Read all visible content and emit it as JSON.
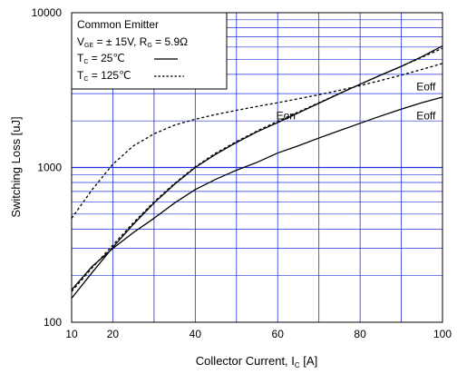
{
  "chart_data": {
    "type": "line",
    "xlabel": "Collector Current, I",
    "xlabel_sub": "C",
    "xlabel_unit": " [A]",
    "ylabel": "Switching Loss [uJ]",
    "xlim": [
      10,
      100
    ],
    "ylim": [
      100,
      10000
    ],
    "yscale": "log",
    "grid": true,
    "x_ticks": [
      10,
      20,
      40,
      60,
      80,
      100
    ],
    "y_ticks": [
      100,
      1000,
      10000
    ],
    "x_tick_labels": [
      "10",
      "20",
      "40",
      "60",
      "80",
      "100"
    ],
    "y_tick_labels": [
      "100",
      "1000",
      "10000"
    ],
    "legend": {
      "placement": "top-left",
      "line1": "Common Emitter",
      "line2": {
        "v": "V",
        "v_sub": "GE",
        "mid": " = ±  15V, R",
        "r_sub": "G",
        "end": " = 5.9Ω"
      },
      "line3": {
        "t": "T",
        "t_sub": "C",
        "text": " =   25℃",
        "style": "solid"
      },
      "line4": {
        "t": "T",
        "t_sub": "C",
        "text": " = 125℃",
        "style": "dashed"
      }
    },
    "annotations": [
      {
        "text": "Eon",
        "x": 62,
        "y": 2050
      },
      {
        "text": "Eoff",
        "x": 96,
        "y": 3150
      },
      {
        "text": "Eoff",
        "x": 96,
        "y": 2050
      }
    ],
    "series": [
      {
        "label": "Eon 25",
        "style": "solid",
        "x": [
          10,
          15,
          20,
          25,
          30,
          35,
          40,
          45,
          50,
          55,
          60,
          65,
          70,
          75,
          80,
          85,
          90,
          95,
          100
        ],
        "y": [
          143,
          210,
          305,
          430,
          590,
          780,
          1000,
          1220,
          1450,
          1700,
          1950,
          2250,
          2600,
          3000,
          3450,
          3950,
          4500,
          5200,
          6100
        ]
      },
      {
        "label": "Eon 125",
        "style": "dashed",
        "x": [
          10,
          15,
          20,
          25,
          30,
          35,
          40,
          45,
          50,
          55,
          60,
          65,
          70,
          75,
          80,
          85,
          90,
          95,
          100
        ],
        "y": [
          158,
          225,
          315,
          440,
          600,
          790,
          1010,
          1240,
          1470,
          1720,
          1990,
          2280,
          2620,
          3010,
          3450,
          3950,
          4500,
          5150,
          5900
        ]
      },
      {
        "label": "Eoff 25",
        "style": "solid",
        "x": [
          10,
          15,
          20,
          25,
          30,
          35,
          40,
          45,
          50,
          55,
          60,
          65,
          70,
          75,
          80,
          85,
          90,
          95,
          100
        ],
        "y": [
          162,
          230,
          300,
          380,
          470,
          590,
          720,
          840,
          960,
          1080,
          1240,
          1380,
          1550,
          1730,
          1930,
          2150,
          2380,
          2620,
          2850
        ]
      },
      {
        "label": "Eoff 125",
        "style": "dashed",
        "x": [
          10,
          15,
          20,
          25,
          30,
          35,
          40,
          45,
          50,
          55,
          60,
          65,
          70,
          75,
          80,
          85,
          90,
          95,
          100
        ],
        "y": [
          470,
          720,
          1050,
          1380,
          1650,
          1880,
          2050,
          2200,
          2340,
          2480,
          2620,
          2780,
          2950,
          3150,
          3380,
          3650,
          3950,
          4300,
          4700
        ]
      }
    ]
  }
}
